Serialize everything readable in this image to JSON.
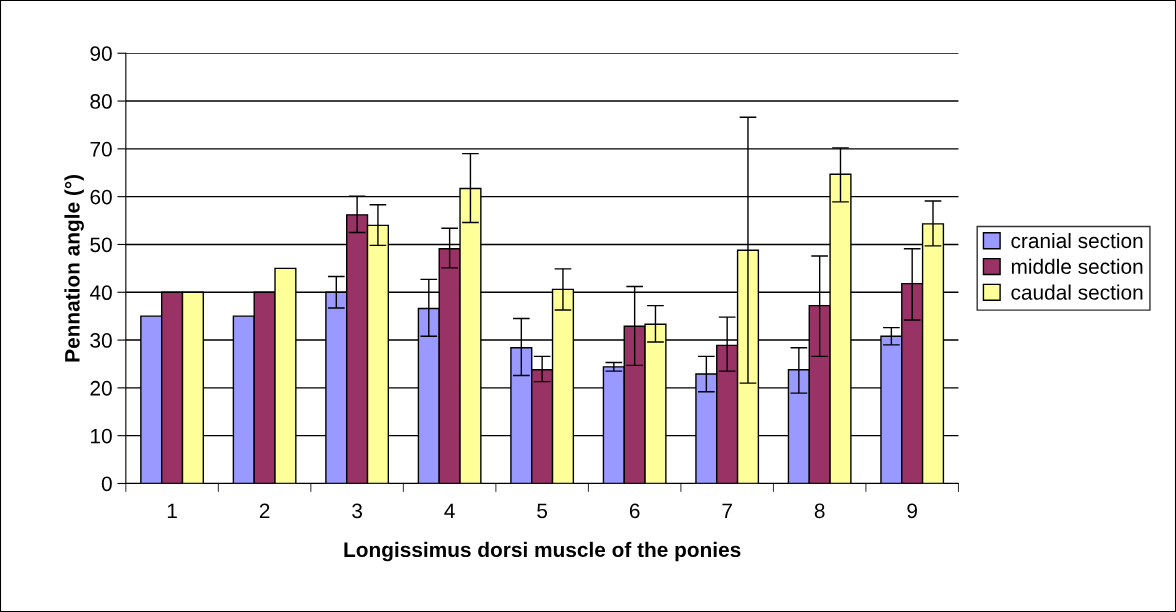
{
  "chart_data": {
    "type": "bar",
    "xlabel": "Longissimus dorsi muscle of the ponies",
    "ylabel": "Pennation angle (°)",
    "categories": [
      "1",
      "2",
      "3",
      "4",
      "5",
      "6",
      "7",
      "8",
      "9"
    ],
    "series": [
      {
        "name": "cranial section",
        "color": "#9999ff",
        "values": [
          35,
          35,
          40,
          36.6,
          28.4,
          24.4,
          22.9,
          23.8,
          30.8
        ],
        "errors": [
          null,
          null,
          [
            36.7,
            43.3
          ],
          [
            30.8,
            42.7
          ],
          [
            22.6,
            34.5
          ],
          [
            23.5,
            25.3
          ],
          [
            19.2,
            26.6
          ],
          [
            18.9,
            28.4
          ],
          [
            29.0,
            32.6
          ]
        ]
      },
      {
        "name": "middle section",
        "color": "#993366",
        "values": [
          40,
          40,
          56.2,
          49.1,
          23.8,
          32.9,
          28.9,
          37.2,
          41.8
        ],
        "errors": [
          null,
          null,
          [
            52.5,
            60.1
          ],
          [
            45.1,
            53.4
          ],
          [
            21.3,
            26.6
          ],
          [
            24.7,
            41.2
          ],
          [
            23.5,
            34.8
          ],
          [
            26.6,
            47.6
          ],
          [
            34.2,
            49.1
          ]
        ]
      },
      {
        "name": "caudal section",
        "color": "#ffff99",
        "values": [
          40,
          45,
          54.0,
          61.7,
          40.6,
          33.3,
          48.8,
          64.7,
          54.3
        ],
        "errors": [
          null,
          null,
          [
            49.8,
            58.3
          ],
          [
            54.6,
            69.0
          ],
          [
            36.3,
            44.9
          ],
          [
            29.6,
            37.2
          ],
          [
            21.0,
            76.6
          ],
          [
            58.9,
            70.2
          ],
          [
            49.7,
            59.1
          ]
        ]
      }
    ],
    "ylim": [
      0,
      90
    ],
    "yticks": [
      0,
      10,
      20,
      30,
      40,
      50,
      60,
      70,
      80,
      90
    ],
    "grid": "y",
    "legend": "right"
  }
}
